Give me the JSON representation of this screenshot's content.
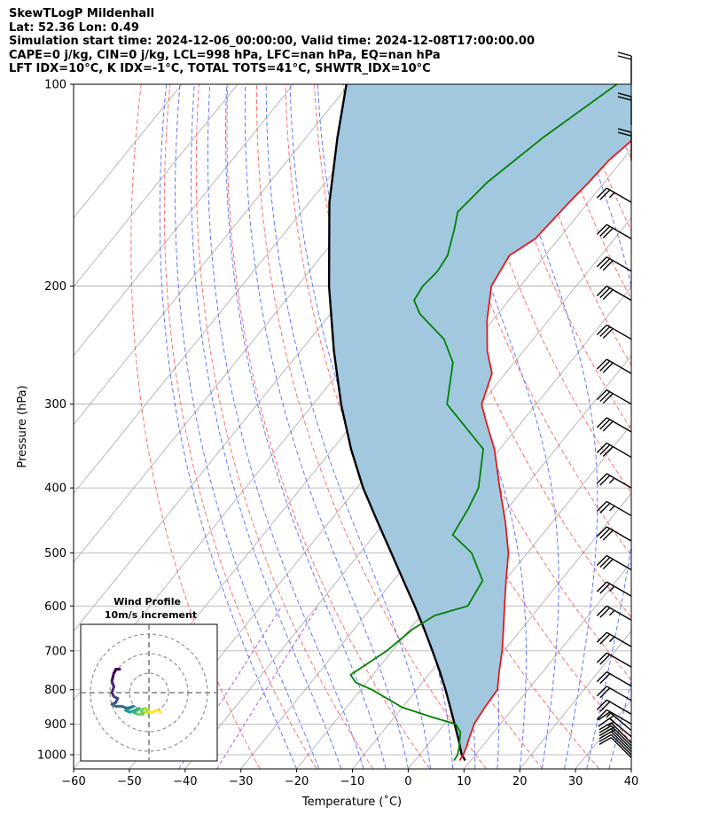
{
  "title_lines": [
    "SkewTLogP Mildenhall",
    "Lat: 52.36   Lon: 0.49",
    "Simulation start time: 2024-12-06_00:00:00, Valid time: 2024-12-08T17:00:00.00",
    "CAPE=0 j/kg, CIN=0 j/kg, LCL=998 hPa, LFC=nan hPa, EQ=nan hPa",
    "LFT IDX=10°C, K IDX=-1°C, TOTAL TOTS=41°C, SHWTR_IDX=10°C"
  ],
  "colors": {
    "temperature": "#e41a1c",
    "dewpoint": "#008000",
    "parcel": "#000000",
    "cape_fill": "#a2c8e0",
    "dry_adiabat": "#ff5050",
    "moist_adiabat": "#3a50ff",
    "mixing_ratio": "#9a3ecb",
    "isotherm": "#a9a9a9"
  },
  "chart_data": {
    "type": "skewt-logp",
    "xlabel": "Temperature (˚C)",
    "ylabel": "Pressure (hPa)",
    "xlim": [
      -60,
      40
    ],
    "ylim": [
      1050,
      100
    ],
    "xticks": [
      -60,
      -50,
      -40,
      -30,
      -20,
      -10,
      0,
      10,
      20,
      30,
      40
    ],
    "yticks": [
      100,
      200,
      300,
      400,
      500,
      600,
      700,
      800,
      900,
      1000
    ],
    "y_scale": "log",
    "grid": true,
    "temperature_profile": [
      {
        "p": 1020,
        "t": 8.0
      },
      {
        "p": 1000,
        "t": 7.8
      },
      {
        "p": 975,
        "t": 7.3
      },
      {
        "p": 950,
        "t": 6.6
      },
      {
        "p": 925,
        "t": 6.0
      },
      {
        "p": 900,
        "t": 5.3
      },
      {
        "p": 850,
        "t": 4.8
      },
      {
        "p": 800,
        "t": 4.5
      },
      {
        "p": 750,
        "t": 2.1
      },
      {
        "p": 700,
        "t": -0.3
      },
      {
        "p": 650,
        "t": -3.2
      },
      {
        "p": 600,
        "t": -6.4
      },
      {
        "p": 550,
        "t": -9.8
      },
      {
        "p": 500,
        "t": -13.4
      },
      {
        "p": 450,
        "t": -18.4
      },
      {
        "p": 400,
        "t": -24.4
      },
      {
        "p": 350,
        "t": -31.0
      },
      {
        "p": 320,
        "t": -36.2
      },
      {
        "p": 300,
        "t": -39.8
      },
      {
        "p": 280,
        "t": -41.5
      },
      {
        "p": 270,
        "t": -42.4
      },
      {
        "p": 250,
        "t": -46.5
      },
      {
        "p": 225,
        "t": -51.0
      },
      {
        "p": 200,
        "t": -55.2
      },
      {
        "p": 180,
        "t": -56.4
      },
      {
        "p": 170,
        "t": -54.2
      },
      {
        "p": 150,
        "t": -53.4
      },
      {
        "p": 140,
        "t": -52.8
      },
      {
        "p": 130,
        "t": -52.4
      },
      {
        "p": 120,
        "t": -51.0
      },
      {
        "p": 110,
        "t": -50.8
      },
      {
        "p": 105,
        "t": -51.8
      },
      {
        "p": 100,
        "t": -52.5
      }
    ],
    "dewpoint_profile": [
      {
        "p": 1020,
        "t": 7.0
      },
      {
        "p": 1000,
        "t": 6.8
      },
      {
        "p": 975,
        "t": 6.0
      },
      {
        "p": 950,
        "t": 5.0
      },
      {
        "p": 925,
        "t": 4.0
      },
      {
        "p": 900,
        "t": 2.0
      },
      {
        "p": 880,
        "t": -3.0
      },
      {
        "p": 850,
        "t": -10.0
      },
      {
        "p": 800,
        "t": -18.0
      },
      {
        "p": 780,
        "t": -22.0
      },
      {
        "p": 760,
        "t": -24.0
      },
      {
        "p": 700,
        "t": -21.0
      },
      {
        "p": 650,
        "t": -19.5
      },
      {
        "p": 620,
        "t": -17.5
      },
      {
        "p": 600,
        "t": -13.0
      },
      {
        "p": 550,
        "t": -14.0
      },
      {
        "p": 500,
        "t": -20.0
      },
      {
        "p": 470,
        "t": -26.0
      },
      {
        "p": 430,
        "t": -27.0
      },
      {
        "p": 400,
        "t": -28.2
      },
      {
        "p": 350,
        "t": -33.0
      },
      {
        "p": 300,
        "t": -46.0
      },
      {
        "p": 260,
        "t": -51.0
      },
      {
        "p": 240,
        "t": -56.0
      },
      {
        "p": 220,
        "t": -64.0
      },
      {
        "p": 210,
        "t": -67.0
      },
      {
        "p": 200,
        "t": -67.5
      },
      {
        "p": 190,
        "t": -67.0
      },
      {
        "p": 180,
        "t": -67.5
      },
      {
        "p": 165,
        "t": -70.0
      },
      {
        "p": 155,
        "t": -72.0
      },
      {
        "p": 140,
        "t": -71.0
      },
      {
        "p": 120,
        "t": -67.5
      },
      {
        "p": 100,
        "t": -62.0
      }
    ],
    "parcel_profile": [
      {
        "p": 1020,
        "t": 9.0
      },
      {
        "p": 998,
        "t": 7.4
      },
      {
        "p": 950,
        "t": 4.8
      },
      {
        "p": 900,
        "t": 1.8
      },
      {
        "p": 850,
        "t": -1.4
      },
      {
        "p": 800,
        "t": -4.8
      },
      {
        "p": 750,
        "t": -8.6
      },
      {
        "p": 700,
        "t": -12.8
      },
      {
        "p": 650,
        "t": -17.4
      },
      {
        "p": 600,
        "t": -22.5
      },
      {
        "p": 550,
        "t": -28.2
      },
      {
        "p": 500,
        "t": -34.4
      },
      {
        "p": 450,
        "t": -41.3
      },
      {
        "p": 400,
        "t": -48.9
      },
      {
        "p": 350,
        "t": -56.7
      },
      {
        "p": 300,
        "t": -65.0
      },
      {
        "p": 250,
        "t": -74.0
      },
      {
        "p": 200,
        "t": -84.3
      },
      {
        "p": 150,
        "t": -96.4
      },
      {
        "p": 120,
        "t": -104.4
      },
      {
        "p": 100,
        "t": -110.5
      }
    ],
    "wind_barbs": [
      {
        "p": 1010,
        "speed_kt": 10,
        "dir": 315
      },
      {
        "p": 1000,
        "speed_kt": 10,
        "dir": 315
      },
      {
        "p": 990,
        "speed_kt": 10,
        "dir": 315
      },
      {
        "p": 980,
        "speed_kt": 10,
        "dir": 315
      },
      {
        "p": 970,
        "speed_kt": 15,
        "dir": 315
      },
      {
        "p": 960,
        "speed_kt": 15,
        "dir": 315
      },
      {
        "p": 940,
        "speed_kt": 15,
        "dir": 310
      },
      {
        "p": 920,
        "speed_kt": 15,
        "dir": 310
      },
      {
        "p": 900,
        "speed_kt": 15,
        "dir": 300
      },
      {
        "p": 870,
        "speed_kt": 20,
        "dir": 300
      },
      {
        "p": 830,
        "speed_kt": 20,
        "dir": 300
      },
      {
        "p": 790,
        "speed_kt": 20,
        "dir": 300
      },
      {
        "p": 740,
        "speed_kt": 20,
        "dir": 300
      },
      {
        "p": 690,
        "speed_kt": 25,
        "dir": 300
      },
      {
        "p": 630,
        "speed_kt": 25,
        "dir": 300
      },
      {
        "p": 580,
        "speed_kt": 25,
        "dir": 300
      },
      {
        "p": 530,
        "speed_kt": 30,
        "dir": 300
      },
      {
        "p": 480,
        "speed_kt": 30,
        "dir": 300
      },
      {
        "p": 440,
        "speed_kt": 25,
        "dir": 300
      },
      {
        "p": 400,
        "speed_kt": 25,
        "dir": 300
      },
      {
        "p": 360,
        "speed_kt": 30,
        "dir": 300
      },
      {
        "p": 330,
        "speed_kt": 30,
        "dir": 300
      },
      {
        "p": 300,
        "speed_kt": 30,
        "dir": 300
      },
      {
        "p": 270,
        "speed_kt": 30,
        "dir": 300
      },
      {
        "p": 240,
        "speed_kt": 30,
        "dir": 300
      },
      {
        "p": 210,
        "speed_kt": 30,
        "dir": 300
      },
      {
        "p": 190,
        "speed_kt": 30,
        "dir": 300
      },
      {
        "p": 170,
        "speed_kt": 30,
        "dir": 300
      },
      {
        "p": 150,
        "speed_kt": 25,
        "dir": 300
      },
      {
        "p": 130,
        "speed_kt": 20,
        "dir": 0
      },
      {
        "p": 115,
        "speed_kt": 20,
        "dir": 0
      },
      {
        "p": 100,
        "speed_kt": 20,
        "dir": 0
      }
    ],
    "wind_profile_inset": {
      "title_lines": [
        "Wind Profile",
        "10m/s increment"
      ],
      "ring_speeds_ms": [
        10,
        20,
        30
      ],
      "max_ms": 35,
      "colormap": "viridis",
      "hodograph": [
        {
          "u": -15,
          "v": 12
        },
        {
          "u": -17,
          "v": 12
        },
        {
          "u": -18,
          "v": 10
        },
        {
          "u": -19,
          "v": 6
        },
        {
          "u": -18,
          "v": 3
        },
        {
          "u": -19,
          "v": 0
        },
        {
          "u": -18,
          "v": -2
        },
        {
          "u": -16,
          "v": -3
        },
        {
          "u": -17,
          "v": -5
        },
        {
          "u": -19,
          "v": -6
        },
        {
          "u": -17,
          "v": -7
        },
        {
          "u": -14,
          "v": -7
        },
        {
          "u": -11,
          "v": -8
        },
        {
          "u": -8,
          "v": -7
        },
        {
          "u": -10,
          "v": -8
        },
        {
          "u": -12,
          "v": -9
        },
        {
          "u": -10,
          "v": -10
        },
        {
          "u": -7,
          "v": -9
        },
        {
          "u": -5,
          "v": -8
        },
        {
          "u": -6,
          "v": -9
        },
        {
          "u": -8,
          "v": -10
        },
        {
          "u": -6,
          "v": -11
        },
        {
          "u": -3,
          "v": -11
        },
        {
          "u": -4,
          "v": -9
        },
        {
          "u": -2,
          "v": -8
        },
        {
          "u": 0,
          "v": -9
        },
        {
          "u": -2,
          "v": -10
        },
        {
          "u": 0,
          "v": -10
        },
        {
          "u": 2,
          "v": -10
        },
        {
          "u": 4,
          "v": -9
        },
        {
          "u": 6,
          "v": -10
        }
      ]
    }
  }
}
